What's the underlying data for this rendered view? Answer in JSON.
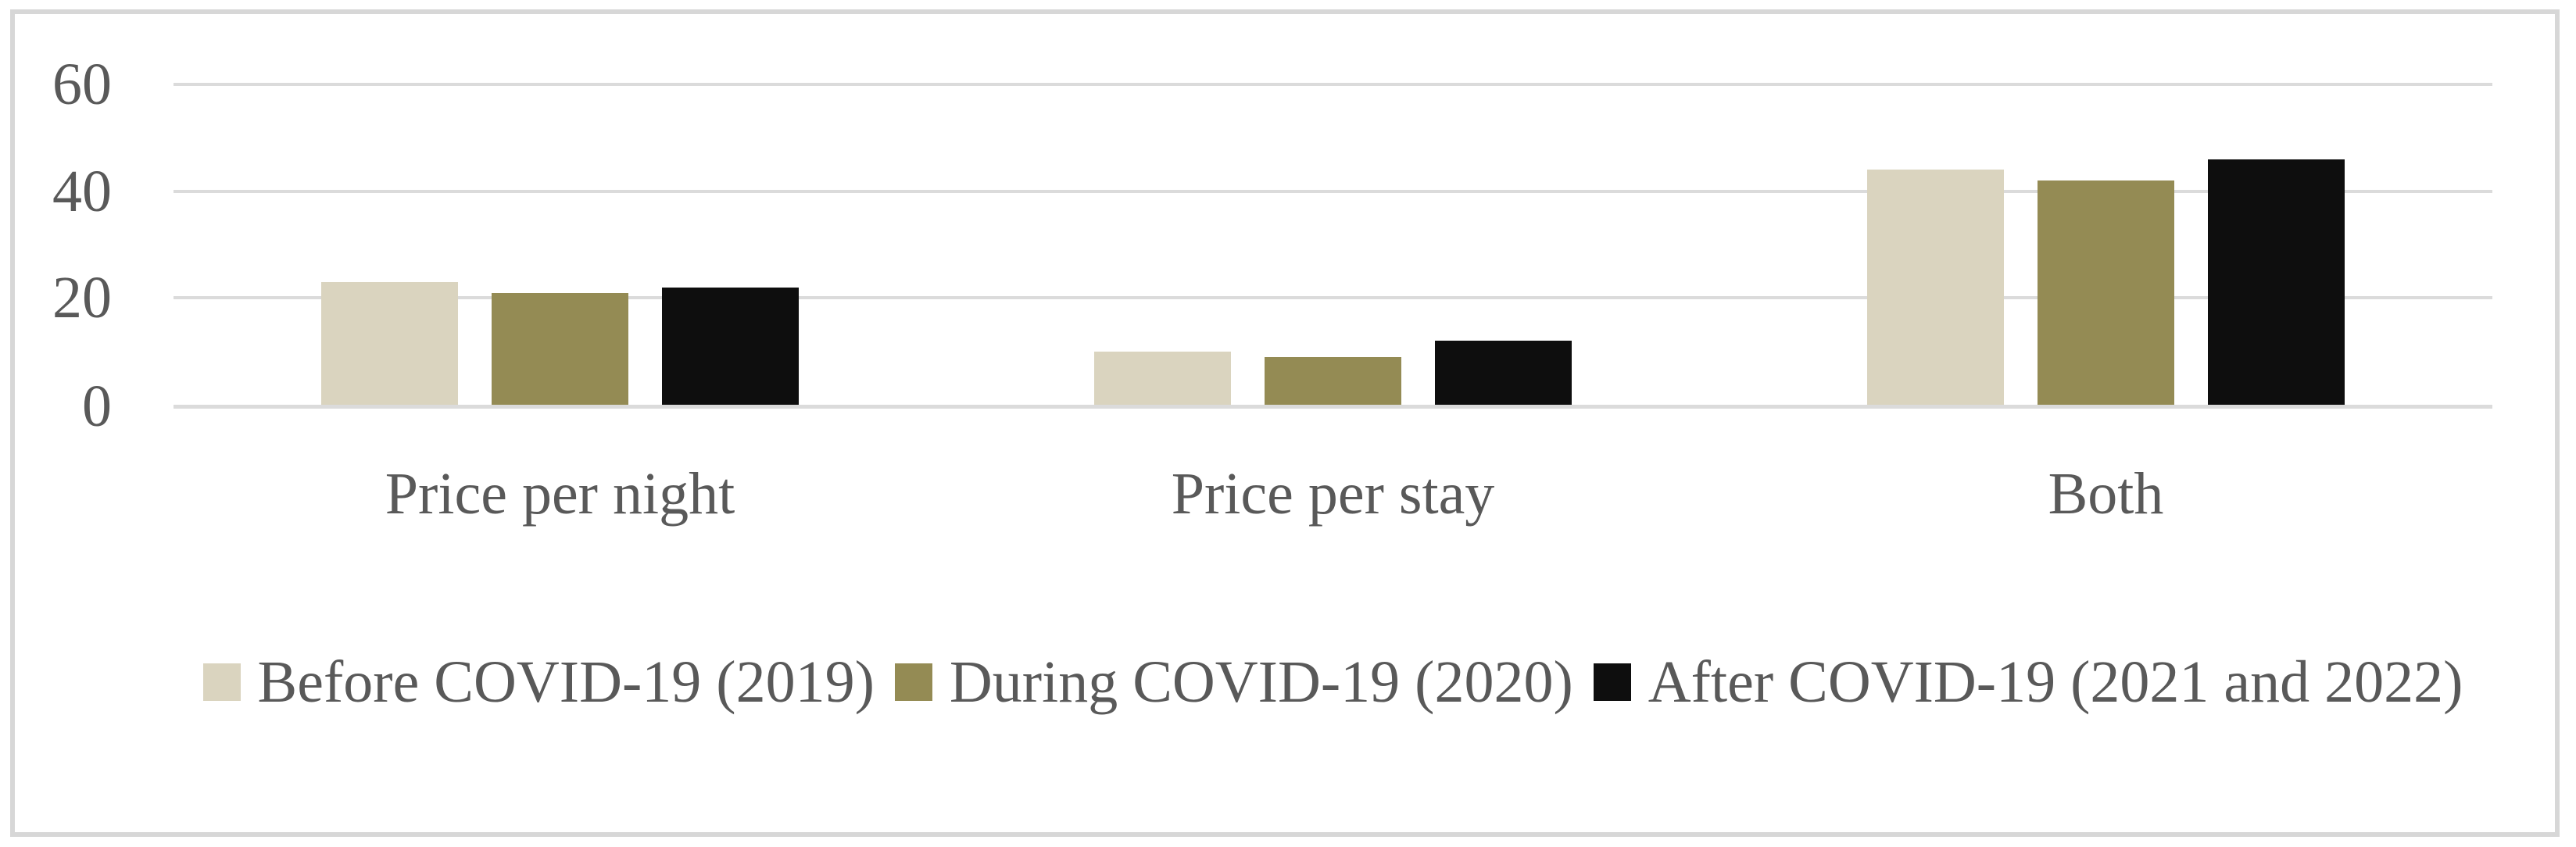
{
  "figure": {
    "background": "#FFFFFF",
    "frame_color": "#D7D7D7",
    "text_color": "#595959",
    "gridline_color": "#DBDBDB"
  },
  "chart_data": {
    "type": "bar",
    "title": "",
    "xlabel": "",
    "ylabel": "",
    "categories": [
      "Price per night",
      "Price per stay",
      "Both"
    ],
    "series": [
      {
        "name": "Before COVID-19 (2019)",
        "color": "#DAD4BF",
        "values": [
          23,
          10,
          44
        ]
      },
      {
        "name": "During COVID-19 (2020)",
        "color": "#948B54",
        "values": [
          21,
          9,
          42
        ]
      },
      {
        "name": "After COVID-19 (2021 and 2022)",
        "color": "#0E0E0E",
        "values": [
          22,
          12,
          46
        ]
      }
    ],
    "y_ticks": [
      0,
      20,
      40,
      60
    ],
    "ylim": [
      0,
      60
    ],
    "grid": true,
    "legend_position": "bottom"
  }
}
